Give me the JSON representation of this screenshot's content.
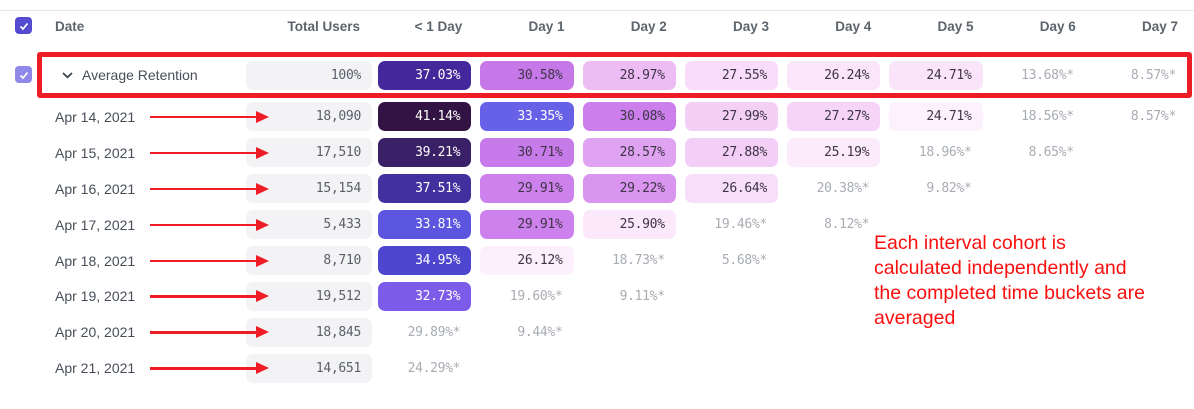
{
  "header": {
    "columns": [
      "Date",
      "Total Users",
      "< 1 Day",
      "Day 1",
      "Day 2",
      "Day 3",
      "Day 4",
      "Day 5",
      "Day 6",
      "Day 7"
    ],
    "select_all_checked": true
  },
  "average_row": {
    "label": "Average Retention",
    "total": "100%",
    "checked": true,
    "cells": [
      {
        "v": "37.03%",
        "bg": "#44289b",
        "fg": "#ffffff"
      },
      {
        "v": "30.58%",
        "bg": "#c678e9",
        "fg": "#3e3547"
      },
      {
        "v": "28.97%",
        "bg": "#edbcf4",
        "fg": "#3e3547"
      },
      {
        "v": "27.55%",
        "bg": "#f8dcf9",
        "fg": "#3e3547"
      },
      {
        "v": "26.24%",
        "bg": "#fae5fb",
        "fg": "#3e3547"
      },
      {
        "v": "24.71%",
        "bg": "#fae4fa",
        "fg": "#3e3547"
      },
      {
        "v": "13.68%*"
      },
      {
        "v": "8.57%*"
      }
    ]
  },
  "rows": [
    {
      "date": "Apr 14, 2021",
      "total": "18,090",
      "cells": [
        {
          "v": "41.14%",
          "bg": "#321343",
          "fg": "#ffffff"
        },
        {
          "v": "33.35%",
          "bg": "#6761e7",
          "fg": "#ffffff"
        },
        {
          "v": "30.08%",
          "bg": "#cb7eec",
          "fg": "#3e3547"
        },
        {
          "v": "27.99%",
          "bg": "#f4d0f7",
          "fg": "#3e3547"
        },
        {
          "v": "27.27%",
          "bg": "#f5d4f8",
          "fg": "#3e3547"
        },
        {
          "v": "24.71%",
          "bg": "#fdf1fd",
          "fg": "#3e3547"
        },
        {
          "v": "18.56%*"
        },
        {
          "v": "8.57%*"
        }
      ]
    },
    {
      "date": "Apr 15, 2021",
      "total": "17,510",
      "cells": [
        {
          "v": "39.21%",
          "bg": "#3a2066",
          "fg": "#ffffff"
        },
        {
          "v": "30.71%",
          "bg": "#c77aea",
          "fg": "#3e3547"
        },
        {
          "v": "28.57%",
          "bg": "#e0a3f1",
          "fg": "#3e3547"
        },
        {
          "v": "27.88%",
          "bg": "#f3cef7",
          "fg": "#3e3547"
        },
        {
          "v": "25.19%",
          "bg": "#fbebfb",
          "fg": "#3e3547"
        },
        {
          "v": "18.96%*"
        },
        {
          "v": "8.65%*"
        },
        null
      ]
    },
    {
      "date": "Apr 16, 2021",
      "total": "15,154",
      "cells": [
        {
          "v": "37.51%",
          "bg": "#41309e",
          "fg": "#ffffff"
        },
        {
          "v": "29.91%",
          "bg": "#cc81ec",
          "fg": "#3e3547"
        },
        {
          "v": "29.22%",
          "bg": "#d995ef",
          "fg": "#3e3547"
        },
        {
          "v": "26.64%",
          "bg": "#f8dff9",
          "fg": "#3e3547"
        },
        {
          "v": "20.38%*"
        },
        {
          "v": "9.82%*"
        },
        null,
        null
      ]
    },
    {
      "date": "Apr 17, 2021",
      "total": "5,433",
      "cells": [
        {
          "v": "33.81%",
          "bg": "#5b55e0",
          "fg": "#ffffff"
        },
        {
          "v": "29.91%",
          "bg": "#cc81ec",
          "fg": "#3e3547"
        },
        {
          "v": "25.90%",
          "bg": "#fbe9fb",
          "fg": "#3e3547"
        },
        {
          "v": "19.46%*"
        },
        {
          "v": "8.12%*"
        },
        null,
        null,
        null
      ]
    },
    {
      "date": "Apr 18, 2021",
      "total": "8,710",
      "cells": [
        {
          "v": "34.95%",
          "bg": "#4f46cf",
          "fg": "#ffffff"
        },
        {
          "v": "26.12%",
          "bg": "#fdf0fc",
          "fg": "#3e3547"
        },
        {
          "v": "18.73%*"
        },
        {
          "v": "5.68%*"
        },
        null,
        null,
        null,
        null
      ]
    },
    {
      "date": "Apr 19, 2021",
      "total": "19,512",
      "cells": [
        {
          "v": "32.73%",
          "bg": "#7b5be8",
          "fg": "#ffffff"
        },
        {
          "v": "19.60%*"
        },
        {
          "v": "9.11%*"
        },
        null,
        null,
        null,
        null,
        null
      ]
    },
    {
      "date": "Apr 20, 2021",
      "total": "18,845",
      "cells": [
        {
          "v": "29.89%*"
        },
        {
          "v": "9.44%*"
        },
        null,
        null,
        null,
        null,
        null,
        null
      ]
    },
    {
      "date": "Apr 21, 2021",
      "total": "14,651",
      "cells": [
        {
          "v": "24.29%*"
        },
        null,
        null,
        null,
        null,
        null,
        null,
        null
      ]
    }
  ],
  "annotation": {
    "lines": [
      "Each interval cohort is",
      "calculated independently and",
      "the completed time buckets are",
      "averaged"
    ],
    "text_color": "#fa0f0f"
  },
  "colors": {
    "highlight_red": "#ee1c25",
    "muted_text": "#a8acb3",
    "gray_pill_bg": "#f3f3f5",
    "header_checkbox": "#544bd1",
    "avg_checkbox": "#8f88e8"
  }
}
